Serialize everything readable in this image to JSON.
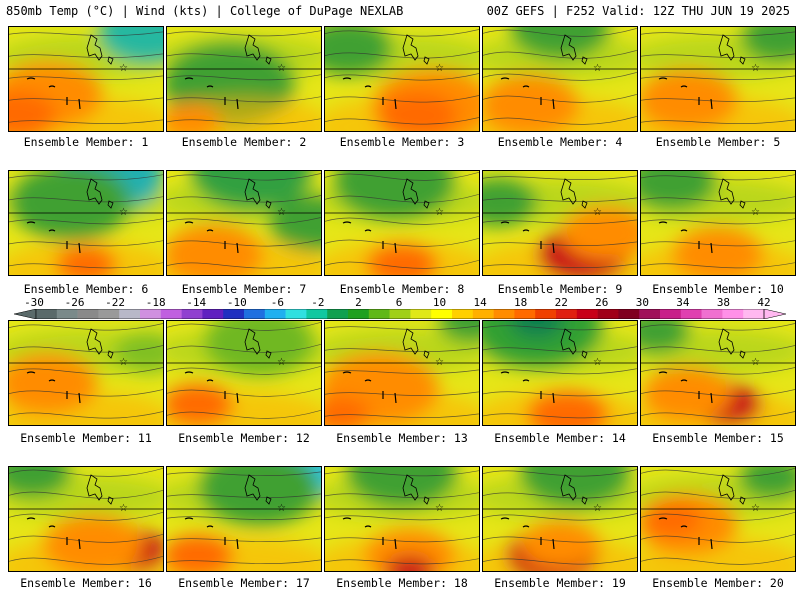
{
  "header": {
    "left_title": "850mb Temp (°C) | Wind (kts) | College of DuPage NEXLAB",
    "right_title": "00Z GEFS | F252 Valid: 12Z THU JUN 19 2025"
  },
  "colorbar": {
    "labels": [
      "-30",
      "-26",
      "-22",
      "-18",
      "-14",
      "-10",
      "-6",
      "-2",
      "2",
      "6",
      "10",
      "14",
      "18",
      "22",
      "26",
      "30",
      "34",
      "38",
      "42"
    ],
    "colors": [
      "#5a6a6a",
      "#7a8a8a",
      "#8a8a8a",
      "#9a9a9a",
      "#b8b8c8",
      "#d090e0",
      "#c060e0",
      "#9040d0",
      "#6020c0",
      "#2030c0",
      "#2070e0",
      "#20b0f0",
      "#30e0e0",
      "#10c8a0",
      "#10a050",
      "#20a020",
      "#60b818",
      "#a0d018",
      "#e0e818",
      "#ffff00",
      "#ffd000",
      "#ffb000",
      "#ff8c00",
      "#ff6a00",
      "#f04000",
      "#e02010",
      "#c80018",
      "#a00018",
      "#800020",
      "#a0105a",
      "#c8208a",
      "#e040b0",
      "#f070d0",
      "#ff90e8",
      "#ffb8f0"
    ]
  },
  "panels": [
    {
      "label": "Ensemble Member: 1",
      "warm": [
        [
          "a",
          0.25,
          0.65,
          0.55
        ],
        [
          "b",
          0.05,
          0.85,
          0.4
        ]
      ],
      "cool": [
        [
          0.9,
          0.05,
          0.45,
          "#28b8a0"
        ]
      ]
    },
    {
      "label": "Ensemble Member: 2",
      "warm": [
        [
          "a",
          0.15,
          0.9,
          0.3
        ]
      ],
      "cool": [
        [
          0.4,
          0.55,
          0.6,
          "#40a030"
        ]
      ]
    },
    {
      "label": "Ensemble Member: 3",
      "warm": [
        [
          "a",
          0.7,
          0.75,
          0.6
        ],
        [
          "b",
          0.6,
          0.85,
          0.4
        ]
      ],
      "cool": [
        [
          0.15,
          0.2,
          0.4,
          "#40a030"
        ]
      ]
    },
    {
      "label": "Ensemble Member: 4",
      "warm": [
        [
          "a",
          0.3,
          0.75,
          0.5
        ]
      ],
      "cool": [
        [
          0.5,
          0.0,
          0.45,
          "#40a030"
        ]
      ]
    },
    {
      "label": "Ensemble Member: 5",
      "warm": [
        [
          "a",
          0.3,
          0.7,
          0.5
        ]
      ],
      "cool": [
        [
          0.9,
          0.1,
          0.35,
          "#40a030"
        ]
      ]
    },
    {
      "label": "Ensemble Member: 6",
      "warm": [
        [
          "b",
          0.5,
          0.9,
          0.3
        ]
      ],
      "cool": [
        [
          0.65,
          0.05,
          0.5,
          "#20b0b0"
        ],
        [
          0.4,
          0.3,
          0.55,
          "#40a030"
        ]
      ]
    },
    {
      "label": "Ensemble Member: 7",
      "warm": [
        [
          "a",
          0.3,
          0.8,
          0.5
        ]
      ],
      "cool": [
        [
          0.55,
          0.0,
          0.55,
          "#30a040"
        ],
        [
          0.95,
          0.5,
          0.4,
          "#40a030"
        ]
      ]
    },
    {
      "label": "Ensemble Member: 8",
      "warm": [
        [
          "b",
          0.5,
          0.9,
          0.35
        ]
      ],
      "cool": [
        [
          0.45,
          0.1,
          0.55,
          "#40a030"
        ]
      ]
    },
    {
      "label": "Ensemble Member: 9",
      "warm": [
        [
          "c",
          0.65,
          0.8,
          0.45
        ],
        [
          "a",
          0.8,
          0.6,
          0.45
        ]
      ],
      "cool": [
        [
          0.1,
          0.3,
          0.35,
          "#40a030"
        ]
      ]
    },
    {
      "label": "Ensemble Member: 10",
      "warm": [
        [
          "a",
          0.5,
          0.8,
          0.45
        ]
      ],
      "cool": [
        [
          0.2,
          0.1,
          0.4,
          "#40a030"
        ]
      ]
    },
    {
      "label": "Ensemble Member: 11",
      "warm": [
        [
          "a",
          0.25,
          0.6,
          0.5
        ]
      ],
      "cool": [
        [
          0.9,
          0.3,
          0.3,
          "#80c020"
        ]
      ]
    },
    {
      "label": "Ensemble Member: 12",
      "warm": [
        [
          "b",
          0.2,
          0.8,
          0.35
        ]
      ],
      "cool": [
        [
          0.6,
          0.2,
          0.5,
          "#70b820"
        ]
      ]
    },
    {
      "label": "Ensemble Member: 13",
      "warm": [
        [
          "a",
          0.35,
          0.65,
          0.6
        ],
        [
          "b",
          0.1,
          0.9,
          0.3
        ]
      ],
      "cool": [
        [
          0.95,
          0.0,
          0.3,
          "#40a030"
        ]
      ]
    },
    {
      "label": "Ensemble Member: 14",
      "warm": [
        [
          "b",
          0.55,
          0.9,
          0.4
        ]
      ],
      "cool": [
        [
          0.35,
          0.05,
          0.6,
          "#30a030"
        ],
        [
          0.35,
          0.0,
          0.25,
          "#108050"
        ]
      ]
    },
    {
      "label": "Ensemble Member: 15",
      "warm": [
        [
          "c",
          0.55,
          0.8,
          0.35
        ],
        [
          "a",
          0.3,
          0.7,
          0.45
        ]
      ],
      "cool": [
        [
          0.1,
          0.1,
          0.3,
          "#40a030"
        ]
      ]
    },
    {
      "label": "Ensemble Member: 16",
      "warm": [
        [
          "c",
          0.8,
          0.8,
          0.35
        ],
        [
          "a",
          0.55,
          0.75,
          0.5
        ]
      ],
      "cool": [
        [
          0.15,
          0.05,
          0.35,
          "#40a030"
        ]
      ]
    },
    {
      "label": "Ensemble Member: 17",
      "warm": [
        [
          "b",
          0.2,
          0.85,
          0.35
        ]
      ],
      "cool": [
        [
          0.85,
          0.0,
          0.45,
          "#30c8e0"
        ],
        [
          0.6,
          0.2,
          0.55,
          "#40a030"
        ]
      ]
    },
    {
      "label": "Ensemble Member: 18",
      "warm": [
        [
          "a",
          0.55,
          0.85,
          0.45
        ],
        [
          "c",
          0.55,
          1.0,
          0.25
        ]
      ],
      "cool": [
        [
          0.5,
          0.05,
          0.5,
          "#40a030"
        ]
      ]
    },
    {
      "label": "Ensemble Member: 19",
      "warm": [
        [
          "c",
          0.45,
          0.85,
          0.45
        ],
        [
          "a",
          0.5,
          0.75,
          0.4
        ]
      ],
      "cool": [
        [
          0.6,
          0.05,
          0.5,
          "#40a030"
        ]
      ]
    },
    {
      "label": "Ensemble Member: 20",
      "warm": [
        [
          "a",
          0.3,
          0.55,
          0.5
        ],
        [
          "b",
          0.2,
          0.5,
          0.3
        ]
      ],
      "cool": [
        [
          0.85,
          0.1,
          0.3,
          "#40a030"
        ]
      ]
    }
  ]
}
